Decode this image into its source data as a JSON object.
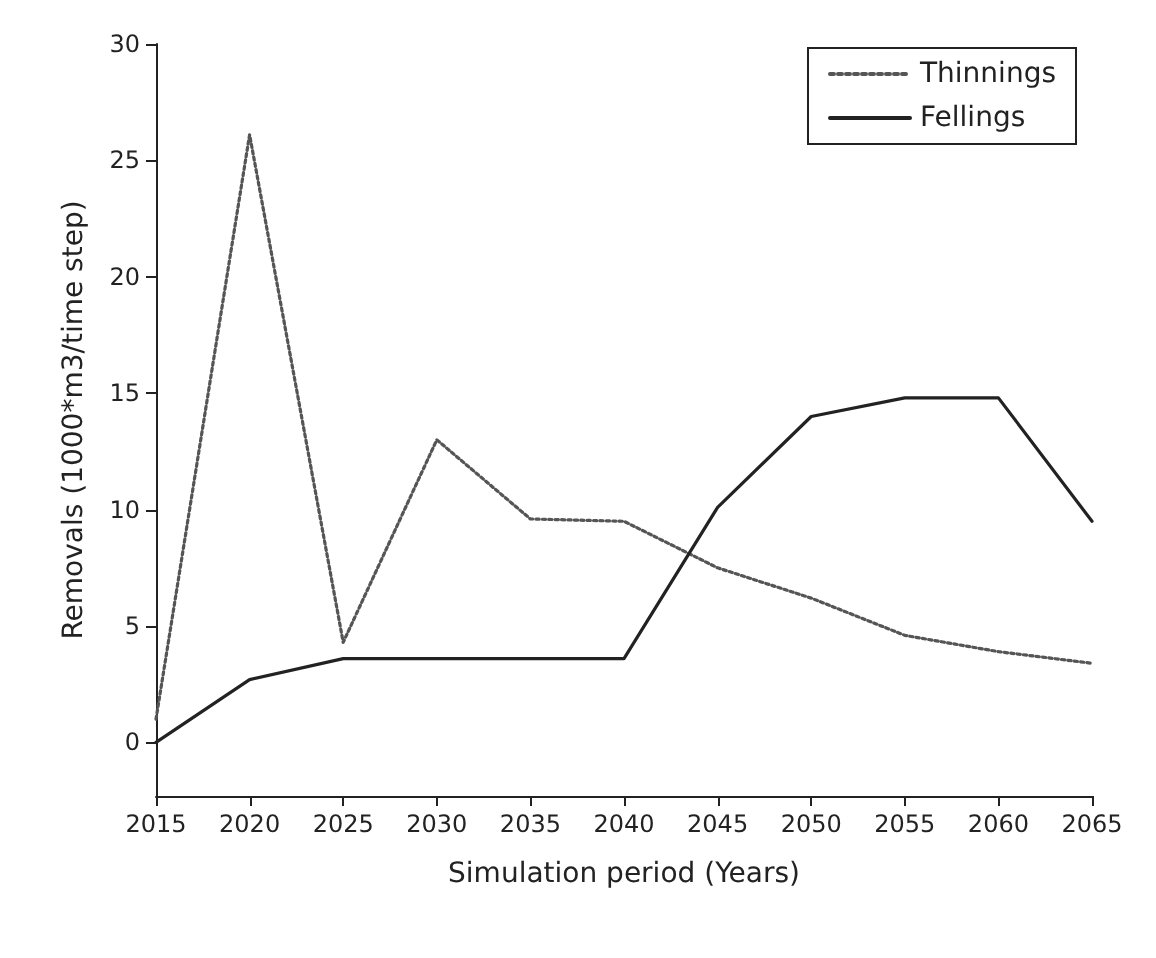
{
  "chart_data": {
    "type": "line",
    "xlabel": "Simulation period (Years)",
    "ylabel": "Removals (1000*m3/time step)",
    "x": [
      2015,
      2020,
      2025,
      2030,
      2035,
      2040,
      2045,
      2050,
      2055,
      2060,
      2065
    ],
    "series": [
      {
        "name": "Thinnings",
        "color": "#555555",
        "line_style": "dotted",
        "values": [
          1.0,
          26.1,
          4.3,
          13.0,
          9.6,
          9.5,
          7.5,
          6.2,
          4.6,
          3.9,
          3.4
        ]
      },
      {
        "name": "Fellings",
        "color": "#222222",
        "line_style": "solid",
        "values": [
          0,
          2.7,
          3.6,
          3.6,
          3.6,
          3.6,
          10.1,
          14.0,
          14.8,
          14.8,
          9.5
        ]
      }
    ],
    "xlim": [
      2015,
      2065
    ],
    "xticks": [
      2015,
      2020,
      2025,
      2030,
      2035,
      2040,
      2045,
      2050,
      2055,
      2060,
      2065
    ],
    "ylim": [
      -2.3,
      30
    ],
    "yticks": [
      0,
      5,
      10,
      15,
      20,
      25,
      30
    ],
    "grid": false,
    "legend": "top right",
    "marker": "none"
  }
}
